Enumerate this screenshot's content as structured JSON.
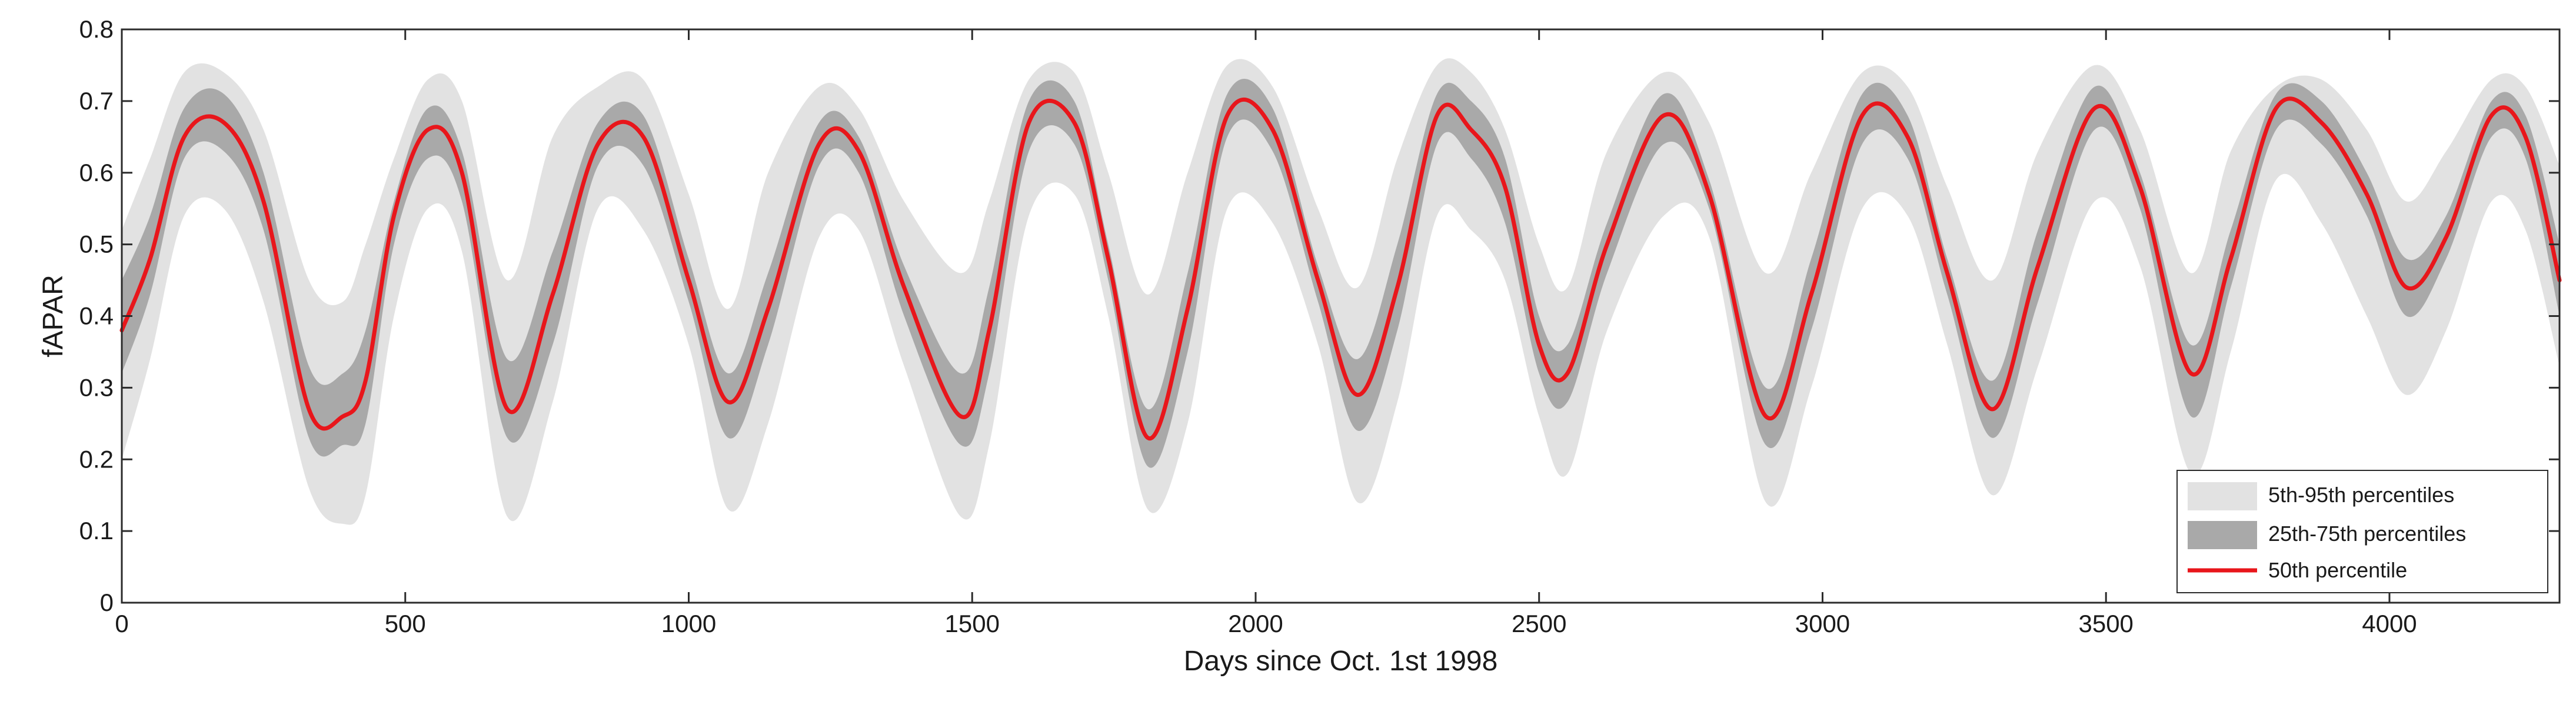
{
  "chart_data": {
    "type": "area",
    "title": "",
    "xlabel": "Days since Oct. 1st 1998",
    "ylabel": "fAPAR",
    "xlim": [
      0,
      4300
    ],
    "ylim": [
      0,
      0.8
    ],
    "xticks": [
      0,
      500,
      1000,
      1500,
      2000,
      2500,
      3000,
      3500,
      4000
    ],
    "yticks": [
      0,
      0.1,
      0.2,
      0.3,
      0.4,
      0.5,
      0.6,
      0.7,
      0.8
    ],
    "ytick_labels": [
      "0",
      "0.1",
      "0.2",
      "0.3",
      "0.4",
      "0.5",
      "0.6",
      "0.7",
      "0.8"
    ],
    "grid": false,
    "legend_position": "bottom-right",
    "x": [
      0,
      50,
      110,
      180,
      250,
      330,
      390,
      430,
      480,
      540,
      600,
      680,
      760,
      840,
      920,
      1000,
      1070,
      1140,
      1230,
      1300,
      1380,
      1480,
      1530,
      1600,
      1680,
      1740,
      1810,
      1880,
      1950,
      2030,
      2110,
      2180,
      2250,
      2320,
      2380,
      2440,
      2500,
      2550,
      2620,
      2720,
      2800,
      2900,
      2980,
      3070,
      3150,
      3220,
      3300,
      3380,
      3480,
      3560,
      3650,
      3720,
      3800,
      3880,
      3960,
      4030,
      4100,
      4180,
      4240,
      4300
    ],
    "series": [
      {
        "name": "5th-95th percentiles",
        "type": "band",
        "color": "#e2e2e2",
        "upper": [
          0.52,
          0.62,
          0.74,
          0.74,
          0.66,
          0.45,
          0.42,
          0.5,
          0.62,
          0.73,
          0.7,
          0.45,
          0.65,
          0.72,
          0.73,
          0.57,
          0.41,
          0.6,
          0.72,
          0.69,
          0.56,
          0.46,
          0.56,
          0.73,
          0.74,
          0.6,
          0.43,
          0.6,
          0.75,
          0.72,
          0.55,
          0.44,
          0.62,
          0.75,
          0.74,
          0.66,
          0.5,
          0.44,
          0.63,
          0.74,
          0.67,
          0.46,
          0.6,
          0.74,
          0.72,
          0.58,
          0.45,
          0.63,
          0.75,
          0.66,
          0.46,
          0.63,
          0.72,
          0.73,
          0.66,
          0.56,
          0.63,
          0.73,
          0.72,
          0.61
        ],
        "lower": [
          0.2,
          0.34,
          0.54,
          0.55,
          0.42,
          0.16,
          0.11,
          0.15,
          0.4,
          0.55,
          0.49,
          0.12,
          0.28,
          0.55,
          0.52,
          0.36,
          0.13,
          0.25,
          0.51,
          0.52,
          0.33,
          0.12,
          0.22,
          0.54,
          0.57,
          0.4,
          0.13,
          0.25,
          0.55,
          0.53,
          0.36,
          0.14,
          0.28,
          0.54,
          0.52,
          0.45,
          0.26,
          0.18,
          0.38,
          0.54,
          0.51,
          0.14,
          0.3,
          0.55,
          0.54,
          0.36,
          0.15,
          0.33,
          0.56,
          0.47,
          0.18,
          0.35,
          0.59,
          0.53,
          0.4,
          0.29,
          0.38,
          0.56,
          0.52,
          0.33
        ]
      },
      {
        "name": "25th-75th percentiles",
        "type": "band",
        "color": "#a9a9a9",
        "upper": [
          0.45,
          0.54,
          0.69,
          0.71,
          0.6,
          0.33,
          0.32,
          0.38,
          0.56,
          0.69,
          0.63,
          0.34,
          0.49,
          0.67,
          0.68,
          0.48,
          0.32,
          0.46,
          0.67,
          0.65,
          0.47,
          0.32,
          0.44,
          0.7,
          0.7,
          0.5,
          0.27,
          0.46,
          0.71,
          0.69,
          0.47,
          0.34,
          0.5,
          0.71,
          0.7,
          0.62,
          0.4,
          0.36,
          0.53,
          0.71,
          0.59,
          0.3,
          0.48,
          0.71,
          0.68,
          0.48,
          0.31,
          0.52,
          0.72,
          0.6,
          0.36,
          0.52,
          0.71,
          0.7,
          0.6,
          0.48,
          0.54,
          0.7,
          0.68,
          0.5
        ],
        "lower": [
          0.32,
          0.43,
          0.62,
          0.63,
          0.52,
          0.23,
          0.22,
          0.25,
          0.5,
          0.62,
          0.56,
          0.23,
          0.36,
          0.61,
          0.61,
          0.42,
          0.23,
          0.36,
          0.61,
          0.6,
          0.4,
          0.22,
          0.32,
          0.63,
          0.64,
          0.45,
          0.19,
          0.35,
          0.65,
          0.63,
          0.42,
          0.24,
          0.38,
          0.64,
          0.62,
          0.53,
          0.32,
          0.28,
          0.46,
          0.64,
          0.55,
          0.22,
          0.38,
          0.64,
          0.62,
          0.43,
          0.23,
          0.42,
          0.66,
          0.55,
          0.26,
          0.44,
          0.66,
          0.64,
          0.54,
          0.4,
          0.48,
          0.65,
          0.62,
          0.4
        ]
      },
      {
        "name": "50th percentile",
        "type": "line",
        "color": "#e8161b",
        "values": [
          0.38,
          0.48,
          0.65,
          0.67,
          0.56,
          0.27,
          0.26,
          0.31,
          0.54,
          0.66,
          0.6,
          0.27,
          0.43,
          0.64,
          0.65,
          0.45,
          0.28,
          0.41,
          0.64,
          0.63,
          0.44,
          0.26,
          0.38,
          0.67,
          0.67,
          0.48,
          0.23,
          0.41,
          0.68,
          0.66,
          0.45,
          0.29,
          0.44,
          0.68,
          0.66,
          0.58,
          0.36,
          0.32,
          0.5,
          0.68,
          0.57,
          0.26,
          0.43,
          0.68,
          0.65,
          0.46,
          0.27,
          0.47,
          0.69,
          0.58,
          0.32,
          0.48,
          0.69,
          0.67,
          0.57,
          0.44,
          0.51,
          0.68,
          0.65,
          0.45
        ]
      }
    ]
  }
}
